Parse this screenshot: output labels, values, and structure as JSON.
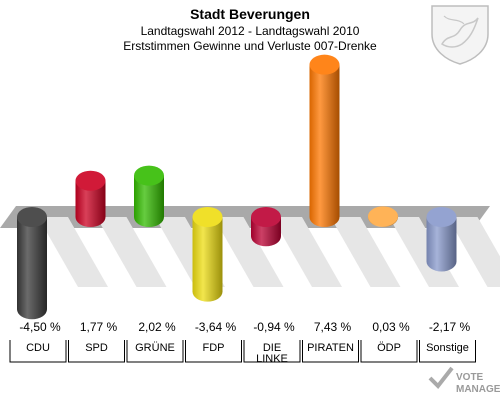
{
  "title": "Stadt Beverungen",
  "subtitle1": "Landtagswahl 2012 - Landtagswahl 2010",
  "subtitle2": "Erststimmen Gewinne und Verluste 007-Drenke",
  "watermark": {
    "line1": "VOTE",
    "line2": "MANAGER"
  },
  "chart_data": {
    "type": "bar",
    "title": "Stadt Beverungen",
    "categories": [
      {
        "label": "CDU",
        "label2": ""
      },
      {
        "label": "SPD",
        "label2": ""
      },
      {
        "label": "GRÜNE",
        "label2": ""
      },
      {
        "label": "FDP",
        "label2": ""
      },
      {
        "label": "DIE",
        "label2": "LINKE"
      },
      {
        "label": "PIRATEN",
        "label2": ""
      },
      {
        "label": "ÖDP",
        "label2": ""
      },
      {
        "label": "Sonstige",
        "label2": ""
      }
    ],
    "values": [
      -4.5,
      1.77,
      2.02,
      -3.64,
      -0.94,
      7.43,
      0.03,
      -2.17
    ],
    "value_labels": [
      "-4,50 %",
      "1,77 %",
      "2,02 %",
      "-3,64 %",
      "-0,94 %",
      "7,43 %",
      "0,03 %",
      "-2,17 %"
    ],
    "colors": [
      "#3a3a3a",
      "#cc0022",
      "#33bb00",
      "#eedd11",
      "#bb0033",
      "#ff7700",
      "#ffaa44",
      "#8899cc"
    ],
    "ylim": [
      -5,
      8
    ],
    "grid": false
  }
}
